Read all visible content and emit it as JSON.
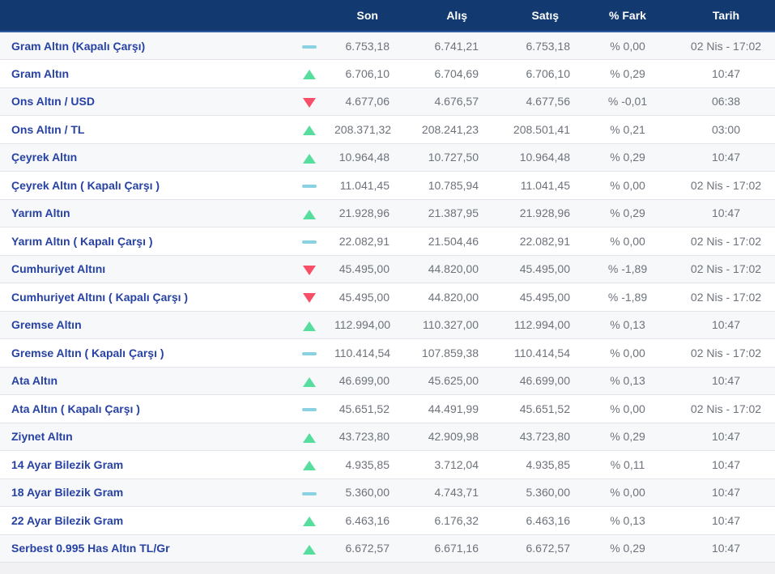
{
  "table": {
    "header": {
      "son": "Son",
      "alis": "Alış",
      "satis": "Satış",
      "fark": "% Fark",
      "tarih": "Tarih"
    },
    "rows": [
      {
        "name": "Gram Altın (Kapalı Çarşı)",
        "trend": "flat",
        "son": "6.753,18",
        "alis": "6.741,21",
        "satis": "6.753,18",
        "fark": "% 0,00",
        "tarih": "02 Nis - 17:02"
      },
      {
        "name": "Gram Altın",
        "trend": "up",
        "son": "6.706,10",
        "alis": "6.704,69",
        "satis": "6.706,10",
        "fark": "% 0,29",
        "tarih": "10:47"
      },
      {
        "name": "Ons Altın / USD",
        "trend": "down",
        "son": "4.677,06",
        "alis": "4.676,57",
        "satis": "4.677,56",
        "fark": "% -0,01",
        "tarih": "06:38"
      },
      {
        "name": "Ons Altın / TL",
        "trend": "up",
        "son": "208.371,32",
        "alis": "208.241,23",
        "satis": "208.501,41",
        "fark": "% 0,21",
        "tarih": "03:00"
      },
      {
        "name": "Çeyrek Altın",
        "trend": "up",
        "son": "10.964,48",
        "alis": "10.727,50",
        "satis": "10.964,48",
        "fark": "% 0,29",
        "tarih": "10:47"
      },
      {
        "name": "Çeyrek Altın ( Kapalı Çarşı )",
        "trend": "flat",
        "son": "11.041,45",
        "alis": "10.785,94",
        "satis": "11.041,45",
        "fark": "% 0,00",
        "tarih": "02 Nis - 17:02"
      },
      {
        "name": "Yarım Altın",
        "trend": "up",
        "son": "21.928,96",
        "alis": "21.387,95",
        "satis": "21.928,96",
        "fark": "% 0,29",
        "tarih": "10:47"
      },
      {
        "name": "Yarım Altın ( Kapalı Çarşı )",
        "trend": "flat",
        "son": "22.082,91",
        "alis": "21.504,46",
        "satis": "22.082,91",
        "fark": "% 0,00",
        "tarih": "02 Nis - 17:02"
      },
      {
        "name": "Cumhuriyet Altını",
        "trend": "down",
        "son": "45.495,00",
        "alis": "44.820,00",
        "satis": "45.495,00",
        "fark": "% -1,89",
        "tarih": "02 Nis - 17:02"
      },
      {
        "name": "Cumhuriyet Altını ( Kapalı Çarşı )",
        "trend": "down",
        "son": "45.495,00",
        "alis": "44.820,00",
        "satis": "45.495,00",
        "fark": "% -1,89",
        "tarih": "02 Nis - 17:02"
      },
      {
        "name": "Gremse Altın",
        "trend": "up",
        "son": "112.994,00",
        "alis": "110.327,00",
        "satis": "112.994,00",
        "fark": "% 0,13",
        "tarih": "10:47"
      },
      {
        "name": "Gremse Altın ( Kapalı Çarşı )",
        "trend": "flat",
        "son": "110.414,54",
        "alis": "107.859,38",
        "satis": "110.414,54",
        "fark": "% 0,00",
        "tarih": "02 Nis - 17:02"
      },
      {
        "name": "Ata Altın",
        "trend": "up",
        "son": "46.699,00",
        "alis": "45.625,00",
        "satis": "46.699,00",
        "fark": "% 0,13",
        "tarih": "10:47"
      },
      {
        "name": "Ata Altın ( Kapalı Çarşı )",
        "trend": "flat",
        "son": "45.651,52",
        "alis": "44.491,99",
        "satis": "45.651,52",
        "fark": "% 0,00",
        "tarih": "02 Nis - 17:02"
      },
      {
        "name": "Ziynet Altın",
        "trend": "up",
        "son": "43.723,80",
        "alis": "42.909,98",
        "satis": "43.723,80",
        "fark": "% 0,29",
        "tarih": "10:47"
      },
      {
        "name": "14 Ayar Bilezik Gram",
        "trend": "up",
        "son": "4.935,85",
        "alis": "3.712,04",
        "satis": "4.935,85",
        "fark": "% 0,11",
        "tarih": "10:47"
      },
      {
        "name": "18 Ayar Bilezik Gram",
        "trend": "flat",
        "son": "5.360,00",
        "alis": "4.743,71",
        "satis": "5.360,00",
        "fark": "% 0,00",
        "tarih": "10:47"
      },
      {
        "name": "22 Ayar Bilezik Gram",
        "trend": "up",
        "son": "6.463,16",
        "alis": "6.176,32",
        "satis": "6.463,16",
        "fark": "% 0,13",
        "tarih": "10:47"
      },
      {
        "name": "Serbest 0.995 Has Altın TL/Gr",
        "trend": "up",
        "son": "6.672,57",
        "alis": "6.671,16",
        "satis": "6.672,57",
        "fark": "% 0,29",
        "tarih": "10:47"
      }
    ]
  },
  "colors": {
    "header_bg": "#133a70",
    "label": "#2742a3",
    "value_text": "#6d727b",
    "up": "#57dd9e",
    "down": "#f74f68",
    "flat": "#8ad2e2"
  }
}
